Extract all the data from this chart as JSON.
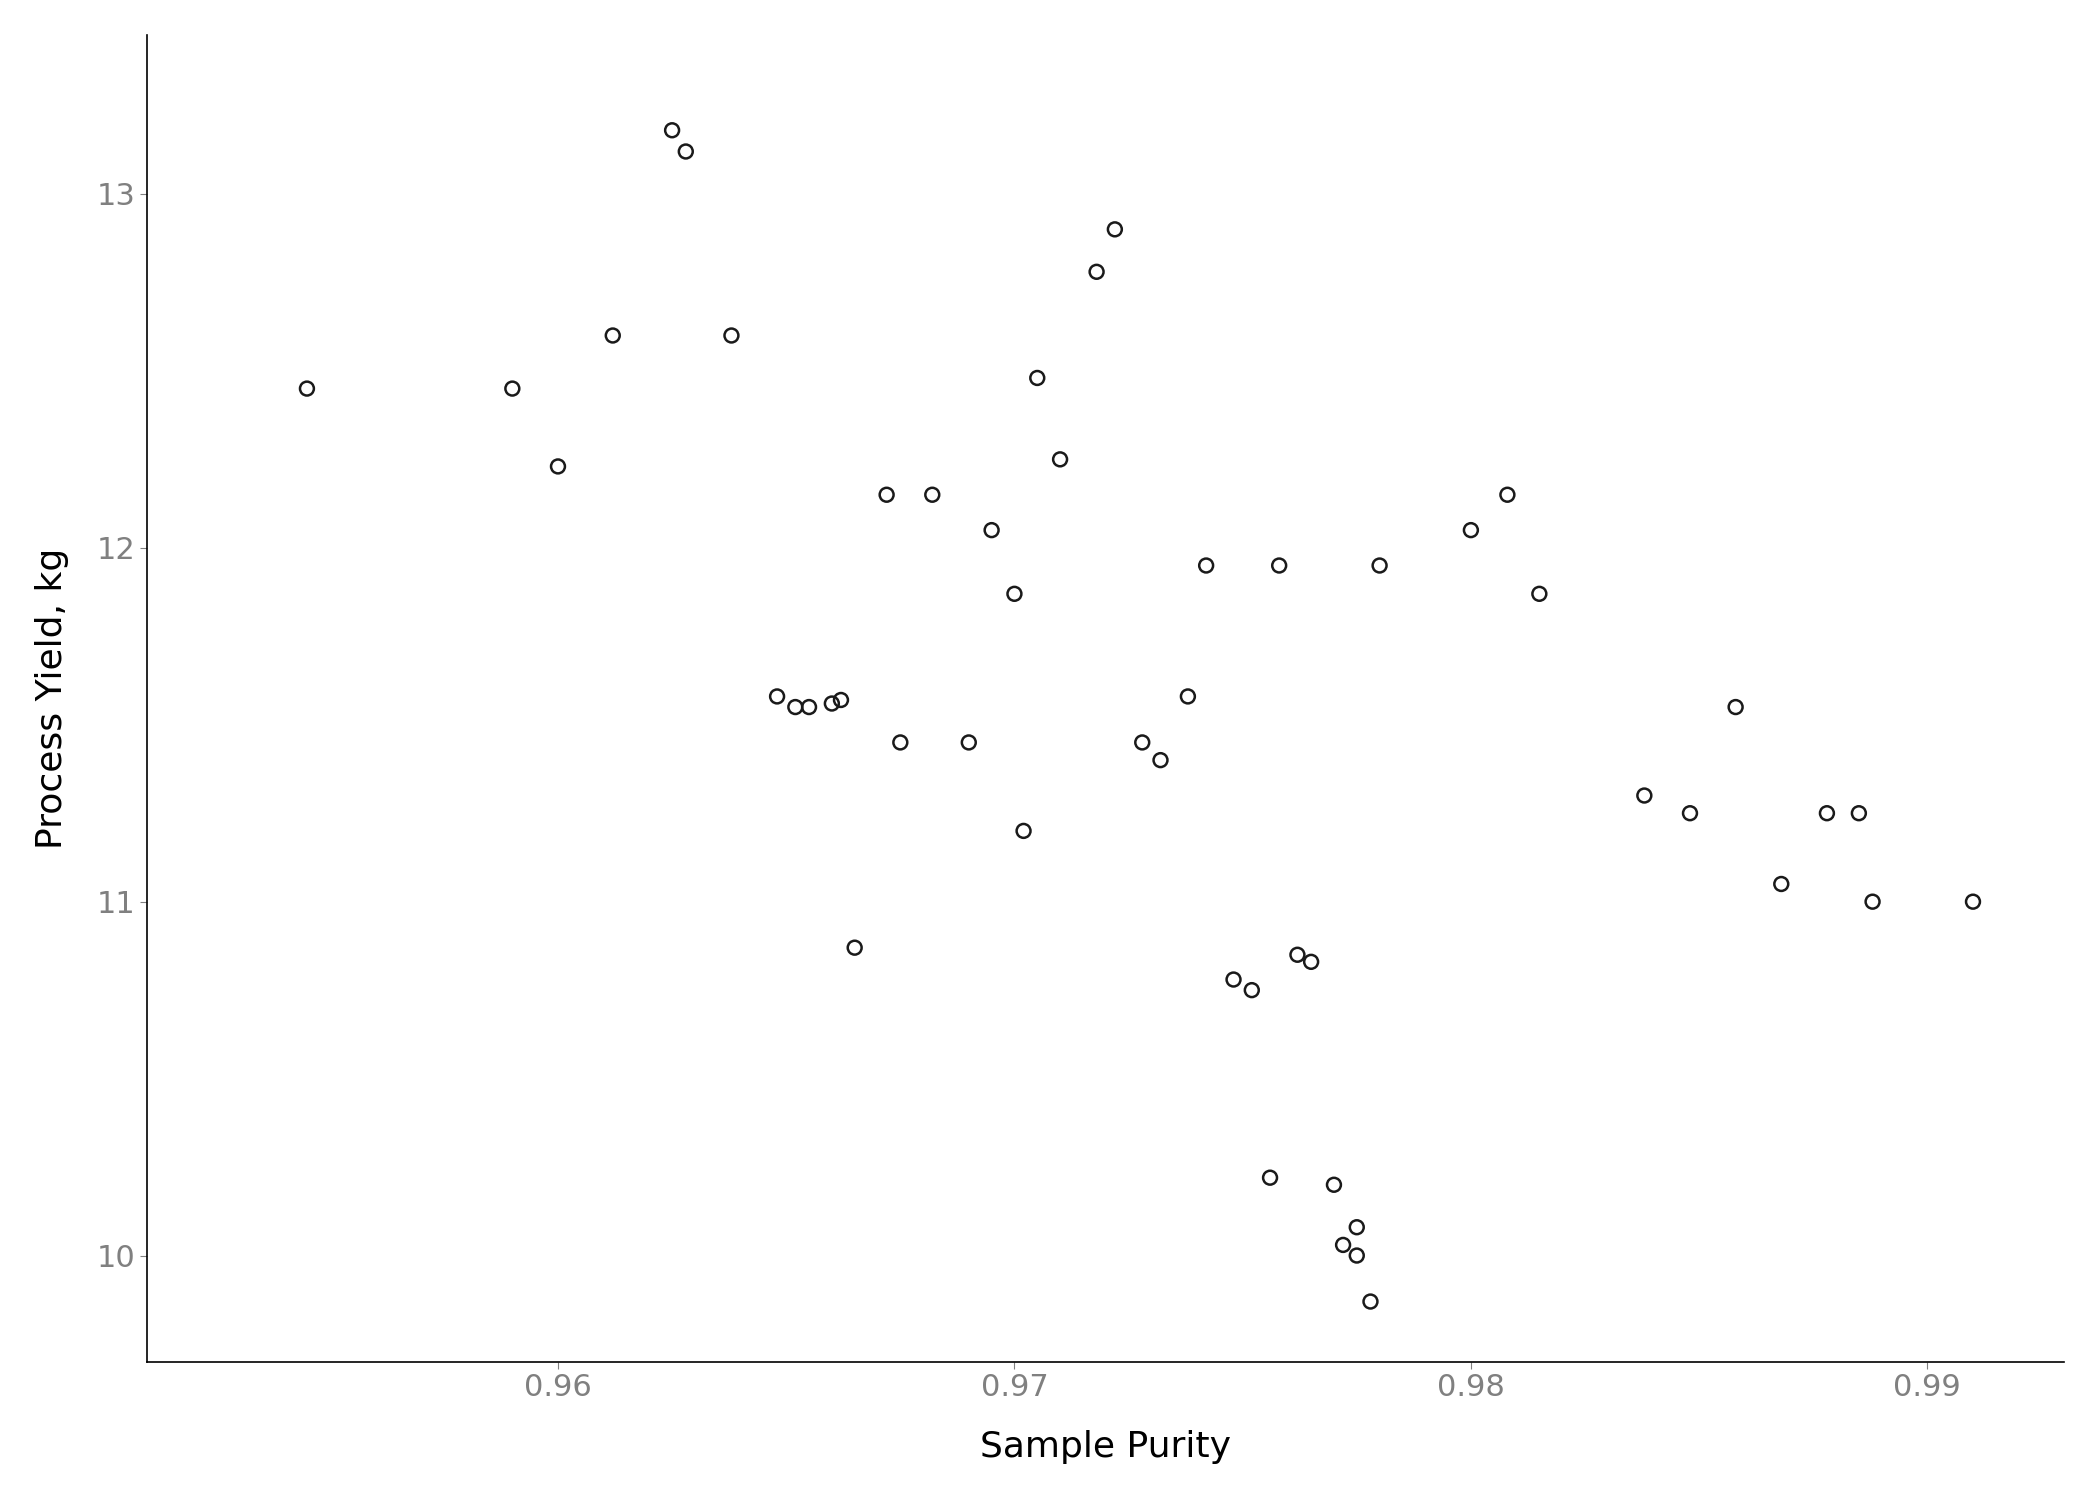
{
  "purity": [
    0.9545,
    0.959,
    0.96,
    0.961,
    0.9625,
    0.9628,
    0.964,
    0.965,
    0.9655,
    0.9658,
    0.9662,
    0.9665,
    0.9668,
    0.9672,
    0.9675,
    0.9682,
    0.9688,
    0.9695,
    0.97,
    0.9702,
    0.9705,
    0.971,
    0.9715,
    0.972,
    0.9725,
    0.973,
    0.9738,
    0.9742,
    0.9748,
    0.9752,
    0.9755,
    0.9758,
    0.976,
    0.9762,
    0.9768,
    0.977,
    0.9772,
    0.9775,
    0.9778,
    0.978,
    0.98,
    0.9805,
    0.9812,
    0.9838,
    0.9848,
    0.9858,
    0.9865,
    0.9878,
    0.9882,
    0.9888,
    0.991
  ],
  "yield_kg": [
    12.45,
    12.45,
    12.23,
    12.6,
    13.18,
    13.12,
    12.6,
    11.58,
    11.55,
    11.55,
    11.56,
    11.57,
    10.87,
    12.15,
    11.45,
    12.15,
    11.45,
    12.05,
    11.87,
    11.2,
    12.48,
    12.25,
    12.78,
    12.9,
    11.45,
    11.4,
    11.58,
    11.95,
    10.78,
    10.75,
    10.22,
    11.95,
    10.85,
    10.83,
    10.2,
    10.03,
    10.08,
    10.0,
    9.87,
    11.95,
    12.05,
    12.15,
    11.87,
    11.3,
    11.25,
    11.55,
    11.05,
    11.25,
    11.25,
    11.0,
    11.0
  ],
  "xlabel": "Sample Purity",
  "ylabel": "Process Yield, kg",
  "xlim": [
    0.951,
    0.993
  ],
  "ylim": [
    9.7,
    13.45
  ],
  "xticks": [
    0.96,
    0.97,
    0.98,
    0.99
  ],
  "yticks": [
    10,
    11,
    12,
    13
  ],
  "marker_size": 100,
  "marker_facecolor": "none",
  "marker_edgecolor": "#1a1a1a",
  "marker_linewidth": 1.8,
  "background_color": "#ffffff",
  "tick_color": "#808080",
  "label_fontsize": 26,
  "tick_fontsize": 22
}
